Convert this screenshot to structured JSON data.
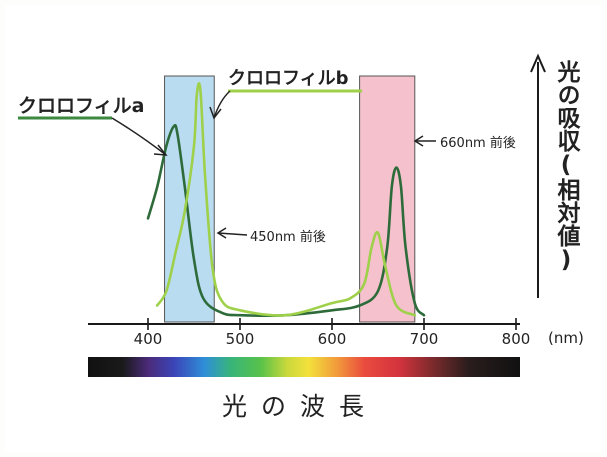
{
  "chart_data": {
    "type": "line",
    "title": "",
    "xlabel": "光の波長",
    "ylabel": "光の吸収(相対値)",
    "x_unit": "(nm)",
    "xlim": [
      350,
      820
    ],
    "ylim": [
      0,
      1.0
    ],
    "x_ticks": [
      {
        "value": 400,
        "label": "400"
      },
      {
        "value": 500,
        "label": "500"
      },
      {
        "value": 600,
        "label": "600"
      },
      {
        "value": 700,
        "label": "700"
      },
      {
        "value": 800,
        "label": "800"
      }
    ],
    "series": [
      {
        "name": "クロロフィルa",
        "color": "#2e6b3a",
        "points": [
          [
            400,
            0.42
          ],
          [
            410,
            0.55
          ],
          [
            420,
            0.72
          ],
          [
            428,
            0.8
          ],
          [
            432,
            0.77
          ],
          [
            440,
            0.55
          ],
          [
            450,
            0.25
          ],
          [
            460,
            0.09
          ],
          [
            480,
            0.03
          ],
          [
            500,
            0.02
          ],
          [
            550,
            0.02
          ],
          [
            600,
            0.04
          ],
          [
            630,
            0.06
          ],
          [
            650,
            0.12
          ],
          [
            660,
            0.3
          ],
          [
            665,
            0.55
          ],
          [
            670,
            0.63
          ],
          [
            675,
            0.55
          ],
          [
            680,
            0.3
          ],
          [
            690,
            0.07
          ],
          [
            700,
            0.02
          ]
        ]
      },
      {
        "name": "クロロフィルb",
        "color": "#9ed04a",
        "points": [
          [
            410,
            0.06
          ],
          [
            420,
            0.12
          ],
          [
            430,
            0.28
          ],
          [
            440,
            0.45
          ],
          [
            450,
            0.72
          ],
          [
            453,
            0.93
          ],
          [
            457,
            0.95
          ],
          [
            462,
            0.6
          ],
          [
            470,
            0.22
          ],
          [
            480,
            0.08
          ],
          [
            500,
            0.04
          ],
          [
            550,
            0.02
          ],
          [
            600,
            0.07
          ],
          [
            620,
            0.09
          ],
          [
            635,
            0.15
          ],
          [
            643,
            0.3
          ],
          [
            650,
            0.36
          ],
          [
            658,
            0.22
          ],
          [
            670,
            0.06
          ],
          [
            690,
            0.02
          ]
        ]
      }
    ],
    "highlight_bands": [
      {
        "from": 418,
        "to": 472,
        "color": "#aed6ee"
      },
      {
        "from": 630,
        "to": 690,
        "color": "#f2b6c4"
      }
    ],
    "annotations": [
      {
        "text": "450nm 前後",
        "x": 460
      },
      {
        "text": "660nm 前後",
        "x": 685
      }
    ],
    "spectrum_bar": true,
    "grid": false,
    "legend": "curve labels"
  },
  "labels": {
    "chl_a": "クロロフィルa",
    "chl_b": "クロロフィルb",
    "ann_450": "450nm 前後",
    "ann_660": "660nm 前後"
  },
  "colors": {
    "axis": "#1a1a1a",
    "chl_a": "#2e6b3a",
    "chl_b": "#9ed04a",
    "underline_a": "#3b8a3f",
    "underline_b": "#9ed04a"
  }
}
